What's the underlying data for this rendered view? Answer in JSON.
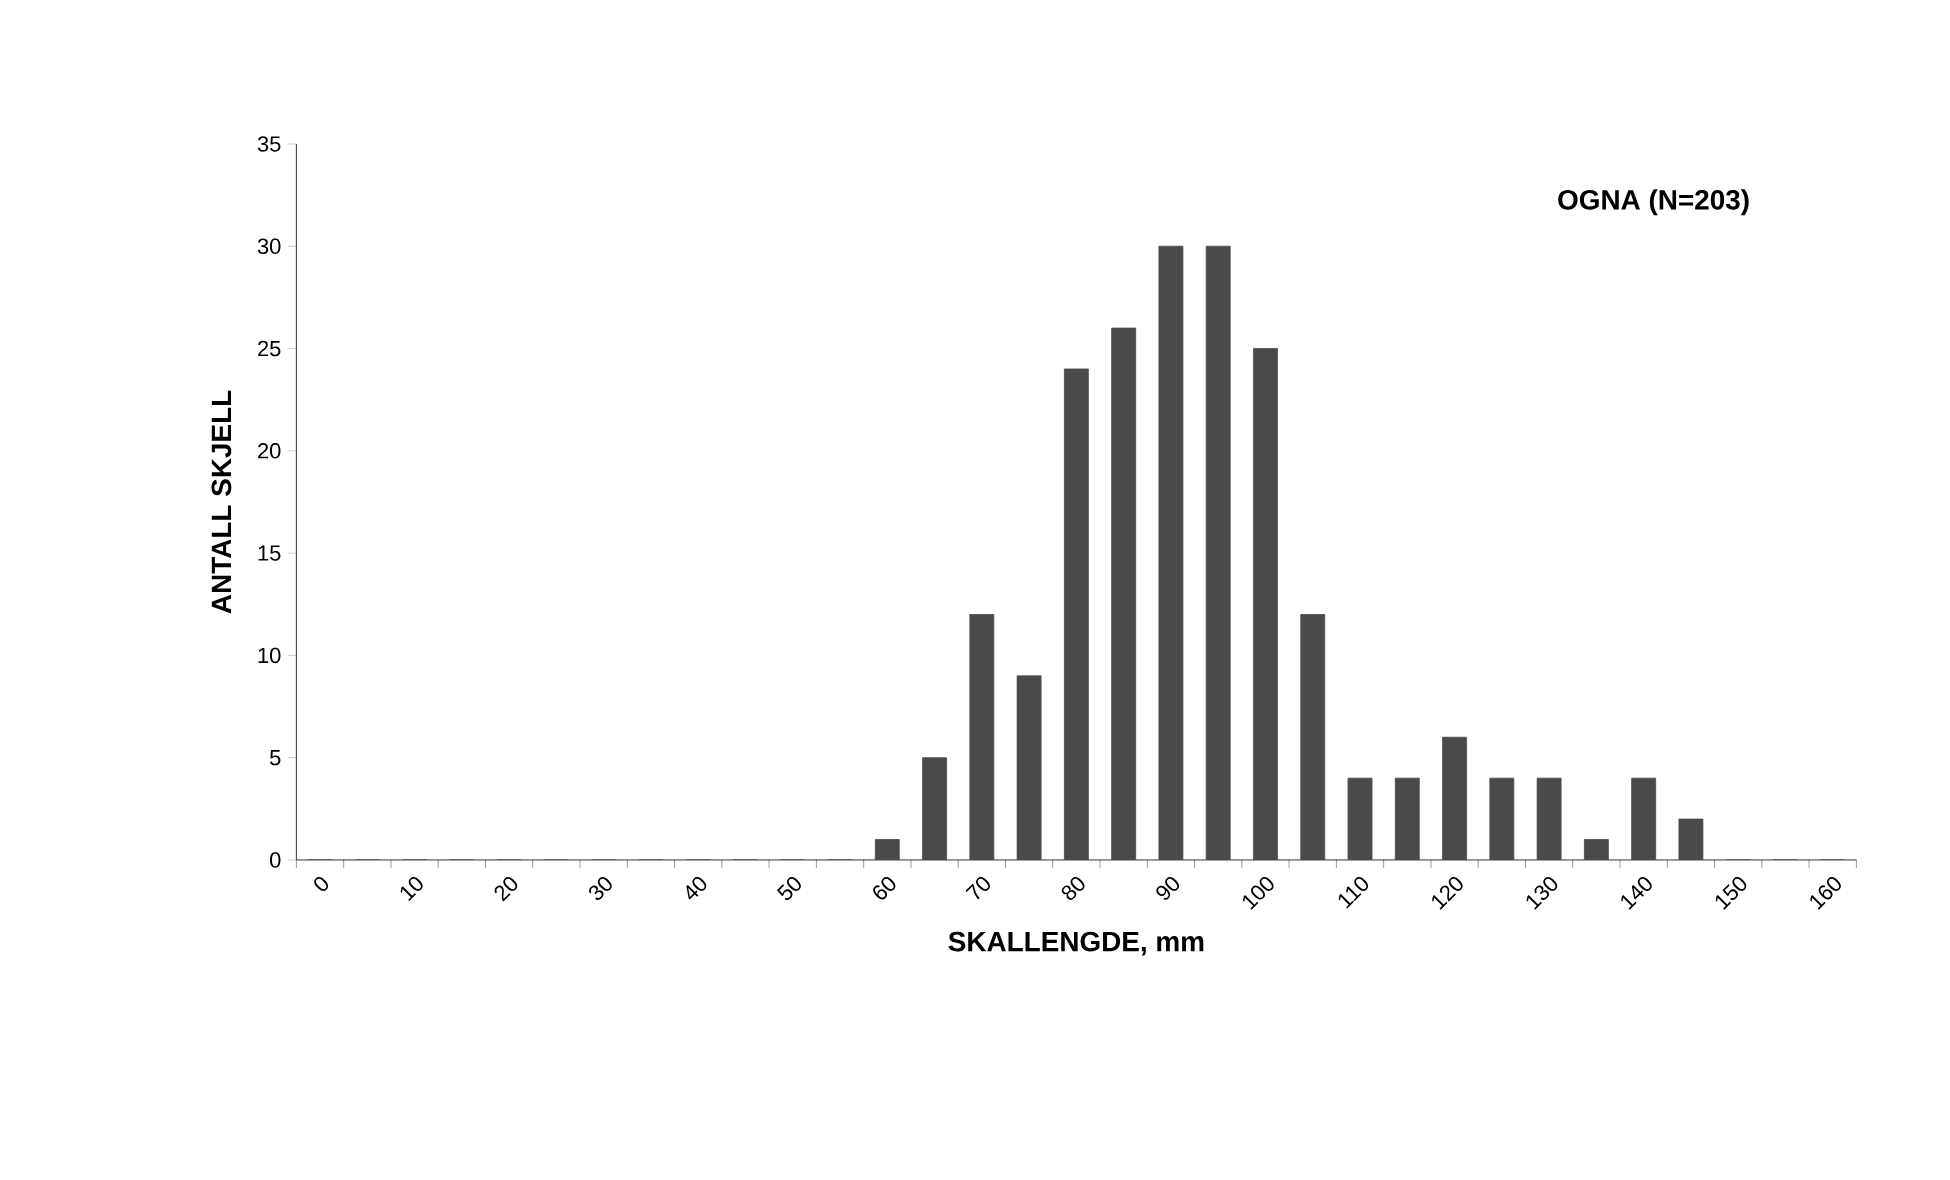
{
  "chart_data": {
    "type": "bar",
    "title": "OGNA  (N=203)",
    "xlabel": "SKALLENGDE, mm",
    "ylabel": "ANTALL SKJELL",
    "categories": [
      "0",
      null,
      "10",
      null,
      "20",
      null,
      "30",
      null,
      "40",
      null,
      "50",
      null,
      "60",
      null,
      "70",
      null,
      "80",
      null,
      "90",
      null,
      "100",
      null,
      "110",
      null,
      "120",
      null,
      "130",
      null,
      "140",
      null,
      "150",
      null,
      "160"
    ],
    "values": [
      0,
      0,
      0,
      0,
      0,
      0,
      0,
      0,
      0,
      0,
      0,
      0,
      1,
      5,
      12,
      9,
      24,
      26,
      30,
      30,
      25,
      12,
      4,
      4,
      6,
      4,
      4,
      1,
      4,
      2,
      0,
      0,
      0
    ],
    "color": "#4a4a4a",
    "ylim": [
      0,
      35
    ],
    "yticks": [
      0,
      5,
      10,
      15,
      20,
      25,
      30,
      35
    ],
    "grid": false
  }
}
